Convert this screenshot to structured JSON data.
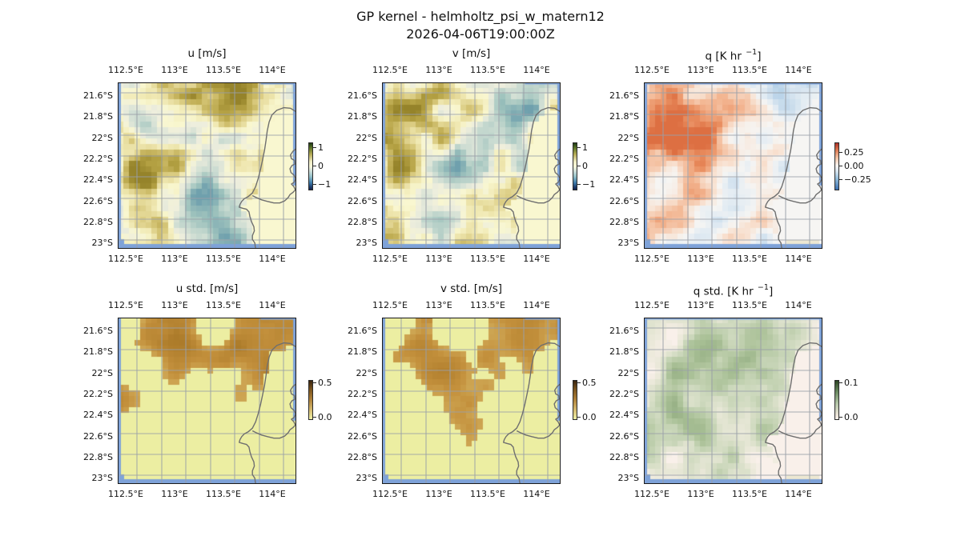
{
  "figure": {
    "suptitle": "GP kernel - helmholtz_psi_w_matern12",
    "subtitle": "2026-04-06T19:00:00Z",
    "background": "#ffffff"
  },
  "axes": {
    "lon_tick_labels": [
      "112.5°E",
      "113°E",
      "113.5°E",
      "114°E"
    ],
    "lat_tick_labels": [
      "21.6°S",
      "21.8°S",
      "22°S",
      "22.2°S",
      "22.4°S",
      "22.6°S",
      "22.8°S",
      "23°S"
    ],
    "lon_tick_values": [
      112.5,
      113.0,
      113.5,
      114.0
    ],
    "lat_tick_values": [
      21.6,
      21.8,
      22.0,
      22.2,
      22.4,
      22.6,
      22.8,
      23.0
    ],
    "lon_range": [
      112.42,
      114.25
    ],
    "lat_range": [
      21.47,
      23.05
    ],
    "grid": true
  },
  "colors": {
    "ocean_edge": "#7ea2d8",
    "coastline": "#6f6f6f",
    "gridline": "#9aa0a8",
    "land_patch": "#ece7d2",
    "frame": "#1a1a1a",
    "ramps": {
      "delta_map": [
        [
          -1,
          "#6fa0ad"
        ],
        [
          -0.7,
          "#9fc3bd"
        ],
        [
          -0.4,
          "#ccdcd2"
        ],
        [
          -0.15,
          "#eeeedd"
        ],
        [
          0,
          "#f9f7d0"
        ],
        [
          0.2,
          "#efe7b0"
        ],
        [
          0.45,
          "#d6c678"
        ],
        [
          0.7,
          "#b5a244"
        ],
        [
          1,
          "#95832a"
        ]
      ],
      "rdbu_map": [
        [
          -1,
          "#8cb6da"
        ],
        [
          -0.6,
          "#b9d3e8"
        ],
        [
          -0.25,
          "#e3ecf3"
        ],
        [
          0,
          "#f6f5f3"
        ],
        [
          0.25,
          "#f8e2d2"
        ],
        [
          0.55,
          "#f3b692"
        ],
        [
          0.8,
          "#e98d5f"
        ],
        [
          1,
          "#dd6f42"
        ]
      ],
      "turbid_map": [
        [
          0,
          "#edf0a4"
        ],
        [
          0.25,
          "#e4d98c"
        ],
        [
          0.45,
          "#d2ae5c"
        ],
        [
          0.62,
          "#c3903c"
        ],
        [
          0.8,
          "#b58331"
        ],
        [
          1,
          "#a0701f"
        ]
      ],
      "rain_map": [
        [
          0,
          "#fbf1ec"
        ],
        [
          0.25,
          "#e7e7d6"
        ],
        [
          0.45,
          "#ccd8bc"
        ],
        [
          0.7,
          "#a9c096"
        ],
        [
          1,
          "#7f9b70"
        ]
      ]
    },
    "cb_gradients": {
      "delta": [
        [
          0,
          "#1e3a14"
        ],
        [
          10,
          "#5a7326"
        ],
        [
          24,
          "#b7ab56"
        ],
        [
          40,
          "#efecc4"
        ],
        [
          50,
          "#f7f6da"
        ],
        [
          60,
          "#cfdfda"
        ],
        [
          72,
          "#93bfc7"
        ],
        [
          85,
          "#3e7cab"
        ],
        [
          94,
          "#1f3f70"
        ],
        [
          100,
          "#13204a"
        ]
      ],
      "rdbu": [
        [
          0,
          "#ad3127"
        ],
        [
          15,
          "#dd7a52"
        ],
        [
          32,
          "#f3c4a6"
        ],
        [
          48,
          "#f7f3f0"
        ],
        [
          60,
          "#d9e6f0"
        ],
        [
          78,
          "#8cb8d8"
        ],
        [
          100,
          "#3b6fb0"
        ]
      ],
      "turbid": [
        [
          0,
          "#39240f"
        ],
        [
          22,
          "#79531e"
        ],
        [
          48,
          "#ad7f38"
        ],
        [
          75,
          "#d5b96e"
        ],
        [
          100,
          "#eef0a6"
        ]
      ],
      "rain": [
        [
          0,
          "#2c4423"
        ],
        [
          30,
          "#6c8c63"
        ],
        [
          60,
          "#b4c6a8"
        ],
        [
          85,
          "#e3ded0"
        ],
        [
          100,
          "#fbf2ec"
        ]
      ]
    }
  },
  "chart_data": {
    "type": "heatmap",
    "layout": "2 rows x 3 columns of lon/lat pcolormesh maps with short vertical colorbars",
    "grid_shape": [
      30,
      32
    ],
    "lon_range": [
      112.42,
      114.25
    ],
    "lat_range": [
      21.47,
      23.05
    ],
    "region": "North West Cape / Exmouth Gulf coastline, Western Australia",
    "panels": [
      {
        "id": "u",
        "row": 0,
        "col": 0,
        "title_pre": "u [m/s]",
        "title_sup": "",
        "title_post": "",
        "cmap": "delta",
        "field": "anom",
        "seed": 11,
        "cb_tick_labels": [
          "1",
          "0",
          "−1"
        ],
        "cb_tick_values": [
          1,
          0,
          -1
        ],
        "cb_range": [
          -1.2,
          1.2
        ],
        "pattern": "weak velocity anomalies: olive-khaki patches along the top and west-centre, pale teal patches in the centre and south",
        "blobs": [
          [
            0.45,
            0.04,
            0.2,
            0.55
          ],
          [
            0.75,
            0.07,
            0.15,
            0.3
          ],
          [
            0.13,
            0.5,
            0.13,
            0.85
          ],
          [
            0.3,
            0.55,
            0.15,
            0.3
          ],
          [
            0.18,
            0.2,
            0.13,
            -0.35
          ],
          [
            0.5,
            0.63,
            0.16,
            -0.5
          ],
          [
            0.57,
            0.86,
            0.12,
            -0.45
          ],
          [
            0.3,
            0.9,
            0.1,
            0.3
          ]
        ]
      },
      {
        "id": "v",
        "row": 0,
        "col": 1,
        "title_pre": "v [m/s]",
        "title_sup": "",
        "title_post": "",
        "cmap": "delta",
        "field": "anom",
        "seed": 23,
        "cb_tick_labels": [
          "1",
          "0",
          "−1"
        ],
        "cb_tick_values": [
          1,
          0,
          -1
        ],
        "cb_range": [
          -1.2,
          1.2
        ],
        "pattern": "khaki patches upper-left, teal cluster upper-right and centre-left, scattered khaki in the south",
        "blobs": [
          [
            0.2,
            0.08,
            0.18,
            0.5
          ],
          [
            0.45,
            0.15,
            0.15,
            0.3
          ],
          [
            0.72,
            0.18,
            0.18,
            -0.5
          ],
          [
            0.08,
            0.53,
            0.1,
            0.9
          ],
          [
            0.35,
            0.62,
            0.18,
            -0.55
          ],
          [
            0.5,
            0.88,
            0.13,
            0.45
          ],
          [
            0.62,
            0.93,
            0.1,
            -0.35
          ],
          [
            0.85,
            0.55,
            0.1,
            -0.2
          ]
        ]
      },
      {
        "id": "q",
        "row": 0,
        "col": 2,
        "title_pre": "q [K hr ",
        "title_sup": "−1",
        "title_post": "]",
        "cmap": "rdbu",
        "field": "anom",
        "seed": 37,
        "cb_tick_labels": [
          "0.25",
          "0.00",
          "−0.25"
        ],
        "cb_tick_values": [
          0.25,
          0,
          -0.25
        ],
        "cb_range": [
          -0.35,
          0.35
        ],
        "pattern": "light orange blobs over the north-west quadrant, blue blob near 113.1E 22.45S, small blue patch at top right",
        "blobs": [
          [
            0.28,
            0.22,
            0.22,
            0.5
          ],
          [
            0.12,
            0.35,
            0.15,
            0.35
          ],
          [
            0.38,
            0.52,
            0.16,
            0.5
          ],
          [
            0.42,
            0.67,
            0.13,
            -0.65
          ],
          [
            0.78,
            0.04,
            0.1,
            -0.45
          ],
          [
            0.5,
            0.83,
            0.1,
            0.4
          ],
          [
            0.25,
            0.75,
            0.1,
            0.3
          ],
          [
            0.65,
            0.3,
            0.15,
            -0.2
          ]
        ]
      },
      {
        "id": "u_std",
        "row": 1,
        "col": 0,
        "title_pre": "u std. [m/s]",
        "title_sup": "",
        "title_post": "",
        "cmap": "turbid",
        "field": "std",
        "seed": 51,
        "cb_tick_labels": [
          "0.5",
          "0.0"
        ],
        "cb_tick_values": [
          0.5,
          0
        ],
        "cb_range": [
          0,
          0.55
        ],
        "pattern": "high (brown) standard deviation over most of the ocean with pale low-std holes; low values along the southern edge and over land",
        "blobs": [
          [
            0.55,
            0.06,
            0.08,
            -1.3
          ],
          [
            0.12,
            0.28,
            0.1,
            -1.1
          ],
          [
            0.45,
            0.42,
            0.1,
            -1.2
          ],
          [
            0.08,
            0.85,
            0.22,
            -1.0
          ],
          [
            0.3,
            0.78,
            0.15,
            -0.7
          ],
          [
            0.55,
            0.97,
            0.25,
            -0.9
          ],
          [
            0.02,
            0.05,
            0.07,
            -1.0
          ],
          [
            0.8,
            0.75,
            0.25,
            -0.8
          ],
          [
            0.4,
            0.2,
            0.4,
            0.4
          ]
        ]
      },
      {
        "id": "v_std",
        "row": 1,
        "col": 1,
        "title_pre": "v std. [m/s]",
        "title_sup": "",
        "title_post": "",
        "cmap": "turbid",
        "field": "std",
        "seed": 67,
        "cb_tick_labels": [
          "0.5",
          "0.0"
        ],
        "cb_tick_values": [
          0.5,
          0
        ],
        "cb_range": [
          0,
          0.55
        ],
        "pattern": "large brown high-std region over the north and centre, pale holes at top corners, left edge and across the south",
        "blobs": [
          [
            0.03,
            0.04,
            0.09,
            -1.3
          ],
          [
            0.44,
            0.06,
            0.1,
            -1.4
          ],
          [
            0.06,
            0.45,
            0.13,
            -1.1
          ],
          [
            0.18,
            0.88,
            0.25,
            -1.2
          ],
          [
            0.65,
            0.82,
            0.2,
            -1.0
          ],
          [
            0.48,
            0.72,
            0.12,
            0.7
          ],
          [
            0.3,
            0.35,
            0.3,
            0.35
          ],
          [
            0.85,
            0.45,
            0.2,
            -0.5
          ]
        ]
      },
      {
        "id": "q_std",
        "row": 1,
        "col": 2,
        "title_pre": "q std. [K hr ",
        "title_sup": "−1",
        "title_post": "]",
        "cmap": "rain",
        "field": "qstd",
        "seed": 83,
        "cb_tick_labels": [
          "0.1",
          "0.0"
        ],
        "cb_tick_values": [
          0.1,
          0
        ],
        "cb_range": [
          0,
          0.12
        ],
        "pattern": "very low std everywhere: faint sage-green mottling on a pale pink background, slightly denser in the north and centre",
        "blobs": [
          [
            0.35,
            0.18,
            0.25,
            0.35
          ],
          [
            0.6,
            0.42,
            0.2,
            0.3
          ],
          [
            0.12,
            0.55,
            0.16,
            0.3
          ],
          [
            0.3,
            0.82,
            0.15,
            0.25
          ],
          [
            0.75,
            0.1,
            0.12,
            0.25
          ]
        ]
      }
    ],
    "coastline": {
      "name": "North West Cape / Exmouth Gulf, Western Australia",
      "west": [
        [
          114.26,
          21.755
        ],
        [
          114.19,
          21.715
        ],
        [
          114.12,
          21.71
        ],
        [
          114.05,
          21.735
        ],
        [
          114.0,
          21.78
        ],
        [
          113.972,
          21.845
        ],
        [
          113.952,
          21.93
        ],
        [
          113.94,
          22.02
        ],
        [
          113.925,
          22.11
        ],
        [
          113.905,
          22.2
        ],
        [
          113.885,
          22.29
        ],
        [
          113.86,
          22.38
        ],
        [
          113.833,
          22.46
        ],
        [
          113.8,
          22.52
        ],
        [
          113.757,
          22.555
        ],
        [
          113.716,
          22.575
        ],
        [
          113.69,
          22.6
        ],
        [
          113.672,
          22.63
        ],
        [
          113.665,
          22.655
        ],
        [
          113.7,
          22.665
        ],
        [
          113.74,
          22.675
        ],
        [
          113.765,
          22.7
        ],
        [
          113.775,
          22.745
        ],
        [
          113.79,
          22.79
        ],
        [
          113.815,
          22.84
        ],
        [
          113.82,
          22.88
        ],
        [
          113.8,
          22.925
        ],
        [
          113.8,
          22.96
        ],
        [
          113.825,
          22.995
        ],
        [
          113.83,
          23.03
        ],
        [
          113.838,
          23.06
        ]
      ],
      "east": [
        [
          114.26,
          22.09
        ],
        [
          114.215,
          22.125
        ],
        [
          114.19,
          22.16
        ],
        [
          114.2,
          22.195
        ],
        [
          114.23,
          22.21
        ],
        [
          114.235,
          22.245
        ],
        [
          114.205,
          22.26
        ],
        [
          114.185,
          22.29
        ],
        [
          114.195,
          22.325
        ],
        [
          114.225,
          22.35
        ],
        [
          114.245,
          22.385
        ],
        [
          114.225,
          22.42
        ],
        [
          114.2,
          22.435
        ],
        [
          114.225,
          22.46
        ],
        [
          114.24,
          22.49
        ],
        [
          114.215,
          22.515
        ],
        [
          114.185,
          22.535
        ],
        [
          114.165,
          22.565
        ],
        [
          114.13,
          22.595
        ],
        [
          114.08,
          22.615
        ],
        [
          114.02,
          22.615
        ],
        [
          113.955,
          22.6
        ],
        [
          113.895,
          22.585
        ],
        [
          113.845,
          22.565
        ],
        [
          113.8,
          22.545
        ]
      ],
      "land_east_of": [
        [
          21.72,
          114.26
        ],
        [
          21.8,
          114.0
        ],
        [
          21.95,
          113.96
        ],
        [
          22.1,
          113.93
        ],
        [
          22.3,
          113.885
        ],
        [
          22.45,
          113.85
        ],
        [
          22.55,
          113.8
        ],
        [
          22.62,
          113.7
        ],
        [
          22.67,
          113.69
        ],
        [
          22.72,
          113.77
        ],
        [
          22.82,
          113.8
        ],
        [
          22.92,
          113.82
        ],
        [
          23.05,
          113.83
        ]
      ]
    }
  }
}
